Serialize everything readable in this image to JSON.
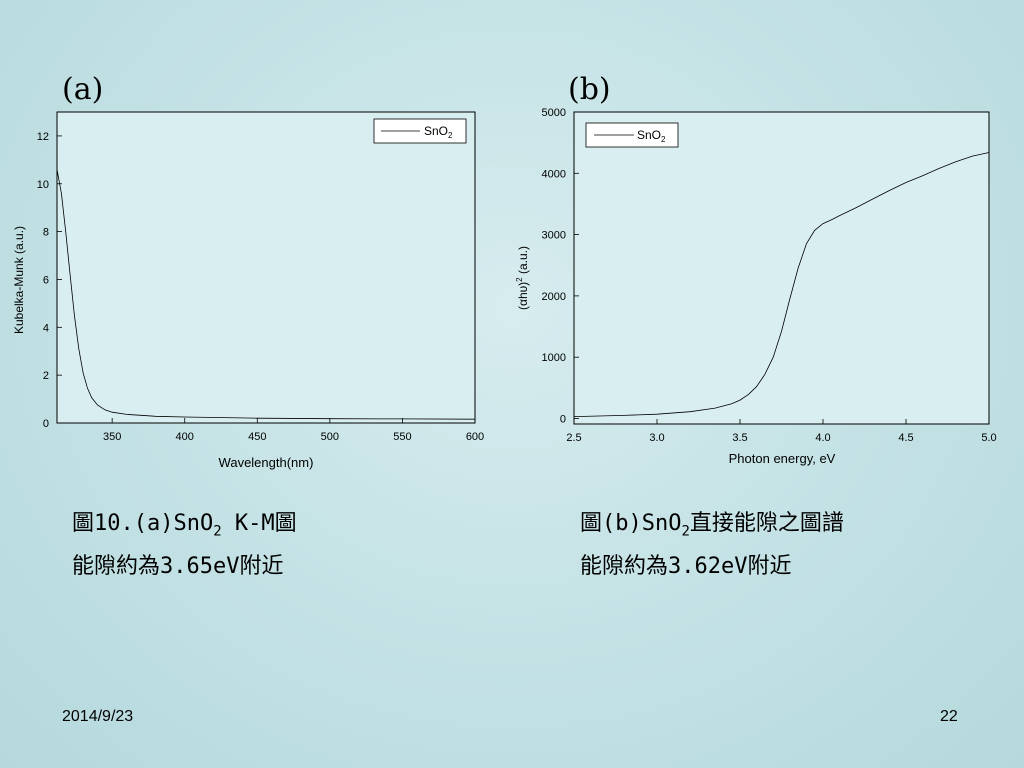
{
  "slide": {
    "panel_a_label": "(a)",
    "panel_b_label": "(b)",
    "caption_a": {
      "line1_pre": "圖10.(a)SnO",
      "line1_sub": "2",
      "line1_post": " K-M圖",
      "line2": "能隙約為3.65eV附近"
    },
    "caption_b": {
      "line1_pre": "圖(b)SnO",
      "line1_sub": "2",
      "line1_post": "直接能隙之圖譜",
      "line2": "能隙約為3.62eV附近"
    },
    "date": "2014/9/23",
    "page_number": "22"
  },
  "chart_data": [
    {
      "type": "line",
      "xlabel": "Wavelength(nm)",
      "ylabel": "Kubelka-Munk (a.u.)",
      "xlim": [
        312,
        600
      ],
      "ylim": [
        0,
        13
      ],
      "xticks": [
        350,
        400,
        450,
        500,
        550,
        600
      ],
      "yticks": [
        0,
        2,
        4,
        6,
        8,
        10,
        12
      ],
      "legend_position": "top-right",
      "series": [
        {
          "name_main": "SnO",
          "name_sub": "2",
          "color": "#000000",
          "x": [
            312,
            315,
            318,
            321,
            324,
            327,
            330,
            333,
            336,
            340,
            345,
            350,
            360,
            370,
            380,
            400,
            450,
            500,
            550,
            600
          ],
          "y": [
            10.6,
            9.6,
            8.0,
            6.2,
            4.5,
            3.1,
            2.1,
            1.45,
            1.05,
            0.75,
            0.55,
            0.45,
            0.36,
            0.32,
            0.28,
            0.25,
            0.2,
            0.18,
            0.17,
            0.16
          ]
        }
      ]
    },
    {
      "type": "line",
      "xlabel": "Photon energy, eV",
      "ylabel_main": "(αhυ)",
      "ylabel_sup": "2",
      "ylabel_post": " (a.u.)",
      "xlim": [
        2.5,
        5.0
      ],
      "ylim": [
        -90,
        5000
      ],
      "xticks": [
        2.5,
        3.0,
        3.5,
        4.0,
        4.5,
        5.0
      ],
      "yticks": [
        0,
        1000,
        2000,
        3000,
        4000,
        5000
      ],
      "legend_position": "top-left",
      "series": [
        {
          "name_main": "SnO",
          "name_sub": "2",
          "color": "#000000",
          "x": [
            2.5,
            2.8,
            3.0,
            3.2,
            3.35,
            3.45,
            3.5,
            3.55,
            3.6,
            3.65,
            3.7,
            3.75,
            3.8,
            3.85,
            3.9,
            3.95,
            4.0,
            4.05,
            4.1,
            4.2,
            4.3,
            4.4,
            4.5,
            4.6,
            4.7,
            4.8,
            4.9,
            5.0
          ],
          "y": [
            30,
            50,
            70,
            110,
            170,
            240,
            300,
            390,
            520,
            720,
            1000,
            1420,
            1950,
            2450,
            2850,
            3070,
            3180,
            3240,
            3310,
            3440,
            3580,
            3720,
            3850,
            3960,
            4080,
            4190,
            4280,
            4340
          ]
        }
      ]
    }
  ]
}
